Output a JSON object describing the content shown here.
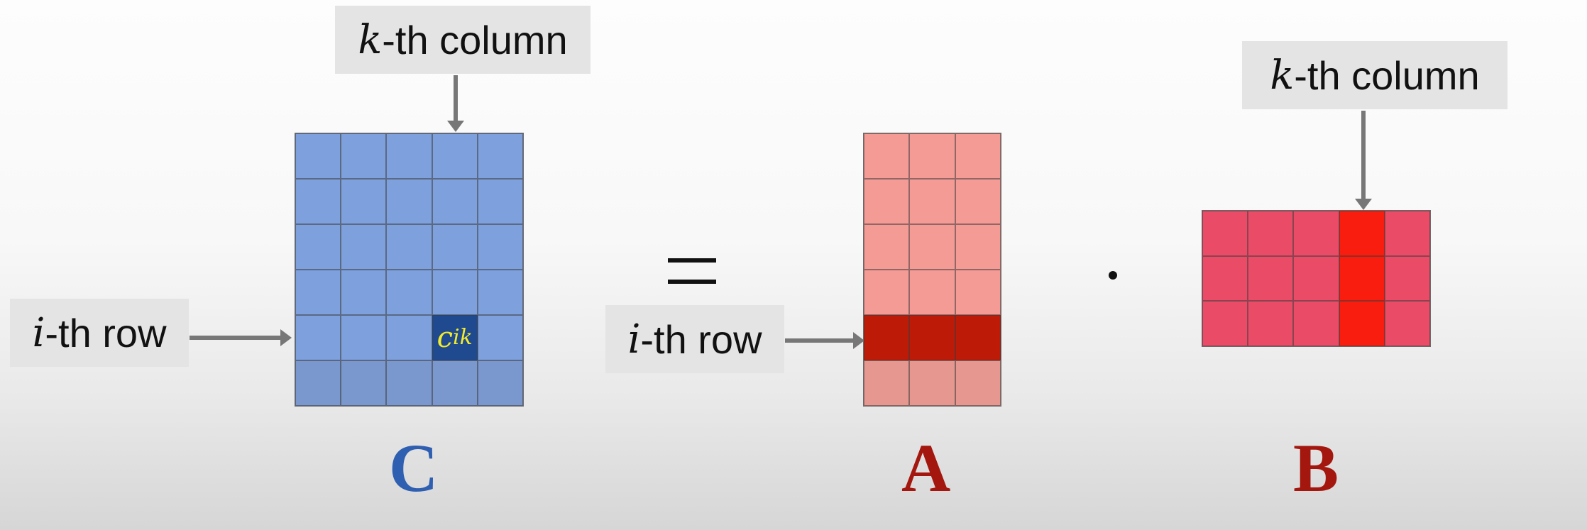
{
  "labels": {
    "c_col": {
      "var": "k",
      "text": "-th column"
    },
    "c_row": {
      "var": "i",
      "text": "-th row"
    },
    "a_row": {
      "var": "i",
      "text": "-th row"
    },
    "b_col": {
      "var": "k",
      "text": "-th column"
    }
  },
  "element": {
    "base": "c",
    "sub": "ik"
  },
  "matrix_names": {
    "c": "C",
    "a": "A",
    "b": "B"
  },
  "operators": {
    "equals": "=",
    "dot": "·"
  },
  "colors": {
    "c_cell": "#7ea0dc",
    "c_cell_bottom": "#7a98ce",
    "c_highlight": "#1f4a90",
    "c_name": "#2f5fb0",
    "a_cell": "#f59b96",
    "a_cell_bottom": "#e69890",
    "a_highlight": "#bd1a08",
    "a_name": "#a3170e",
    "b_cell": "#ea4c68",
    "b_highlight": "#f81d0f",
    "b_name": "#a3170e"
  },
  "matrices": {
    "c": {
      "rows": 6,
      "cols": 5,
      "highlight_row": 5,
      "highlight_col": 4
    },
    "a": {
      "rows": 6,
      "cols": 3,
      "highlight_row": 5
    },
    "b": {
      "rows": 3,
      "cols": 5,
      "highlight_col": 4
    }
  }
}
